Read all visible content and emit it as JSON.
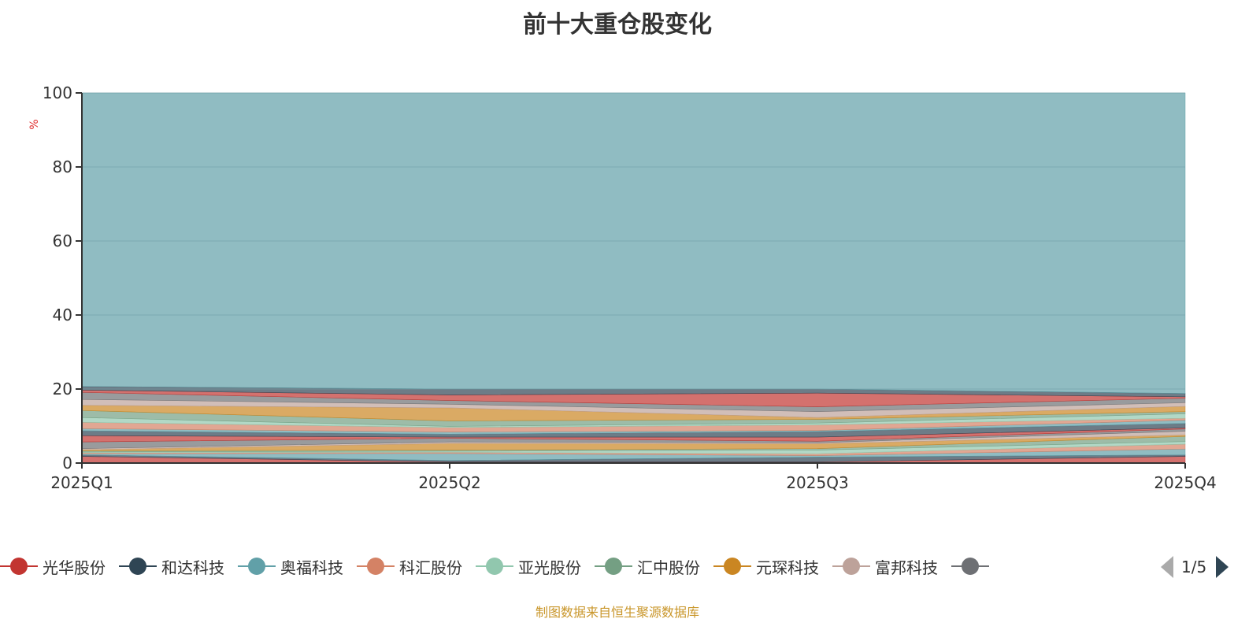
{
  "title": "前十大重仓股变化",
  "source": "制图数据来自恒生聚源数据库",
  "pager": "1/5",
  "palette": [
    "#c23531",
    "#2f4554",
    "#61a0a8",
    "#d48265",
    "#91c7ae",
    "#749f83",
    "#ca8622",
    "#bda29a",
    "#6e7074"
  ],
  "legend": [
    {
      "name": "光华股份",
      "color": "#c23531"
    },
    {
      "name": "和达科技",
      "color": "#2f4554"
    },
    {
      "name": "奥福科技",
      "color": "#61a0a8"
    },
    {
      "name": "科汇股份",
      "color": "#d48265"
    },
    {
      "name": "亚光股份",
      "color": "#91c7ae"
    },
    {
      "name": "汇中股份",
      "color": "#749f83"
    },
    {
      "name": "元琛科技",
      "color": "#ca8622"
    },
    {
      "name": "富邦科技",
      "color": "#bda29a"
    },
    {
      "name": "",
      "color": "#6e7074"
    }
  ],
  "chart_data": {
    "type": "area",
    "stacked": true,
    "title": "前十大重仓股变化",
    "ylabel": "%",
    "ylim": [
      0,
      100
    ],
    "yticks": [
      "0",
      "20",
      "40",
      "60",
      "80",
      "100"
    ],
    "categories": [
      "2025Q1",
      "2025Q2",
      "2025Q3",
      "2025Q4"
    ],
    "series": [
      {
        "name": "光华股份",
        "values": [
          1.8,
          0.3,
          0.3,
          1.8
        ]
      },
      {
        "name": "和达科技",
        "values": [
          0.4,
          0.4,
          1.3,
          0.4
        ]
      },
      {
        "name": "奥福科技",
        "values": [
          0.3,
          1.9,
          0.4,
          1.6
        ]
      },
      {
        "name": "科汇股份",
        "values": [
          0.3,
          0.3,
          0.5,
          1.3
        ]
      },
      {
        "name": "亚光股份",
        "values": [
          0.2,
          0.3,
          1.0,
          0.7
        ]
      },
      {
        "name": "汇中股份",
        "values": [
          0.3,
          0.3,
          0.4,
          1.4
        ]
      },
      {
        "name": "元琛科技",
        "values": [
          0.3,
          1.8,
          1.3,
          0.4
        ]
      },
      {
        "name": "富邦科技",
        "values": [
          0.3,
          0.4,
          0.3,
          1.0
        ]
      },
      {
        "name": "",
        "values": [
          1.8,
          1.0,
          0.4,
          0.6
        ]
      },
      {
        "name": "",
        "values": [
          1.7,
          0.3,
          1.1,
          0.3
        ]
      },
      {
        "name": "",
        "values": [
          1.3,
          0.8,
          1.5,
          1.2
        ]
      },
      {
        "name": "",
        "values": [
          0.6,
          0.6,
          0.3,
          0.9
        ]
      },
      {
        "name": "",
        "values": [
          1.7,
          1.2,
          1.5,
          0.5
        ]
      },
      {
        "name": "",
        "values": [
          1.3,
          0.3,
          0.5,
          1.2
        ]
      },
      {
        "name": "",
        "values": [
          1.9,
          1.5,
          1.0,
          0.6
        ]
      },
      {
        "name": "",
        "values": [
          1.4,
          3.5,
          0.5,
          1.4
        ]
      },
      {
        "name": "",
        "values": [
          1.6,
          1.0,
          1.6,
          1.0
        ]
      },
      {
        "name": "",
        "values": [
          1.9,
          1.0,
          1.3,
          1.2
        ]
      },
      {
        "name": "",
        "values": [
          0.6,
          1.5,
          3.7,
          0.4
        ]
      },
      {
        "name": "",
        "values": [
          1.0,
          1.6,
          1.1,
          0.9
        ]
      },
      {
        "name": "",
        "values": [
          79.3,
          80.0,
          80.0,
          81.2
        ]
      }
    ]
  }
}
